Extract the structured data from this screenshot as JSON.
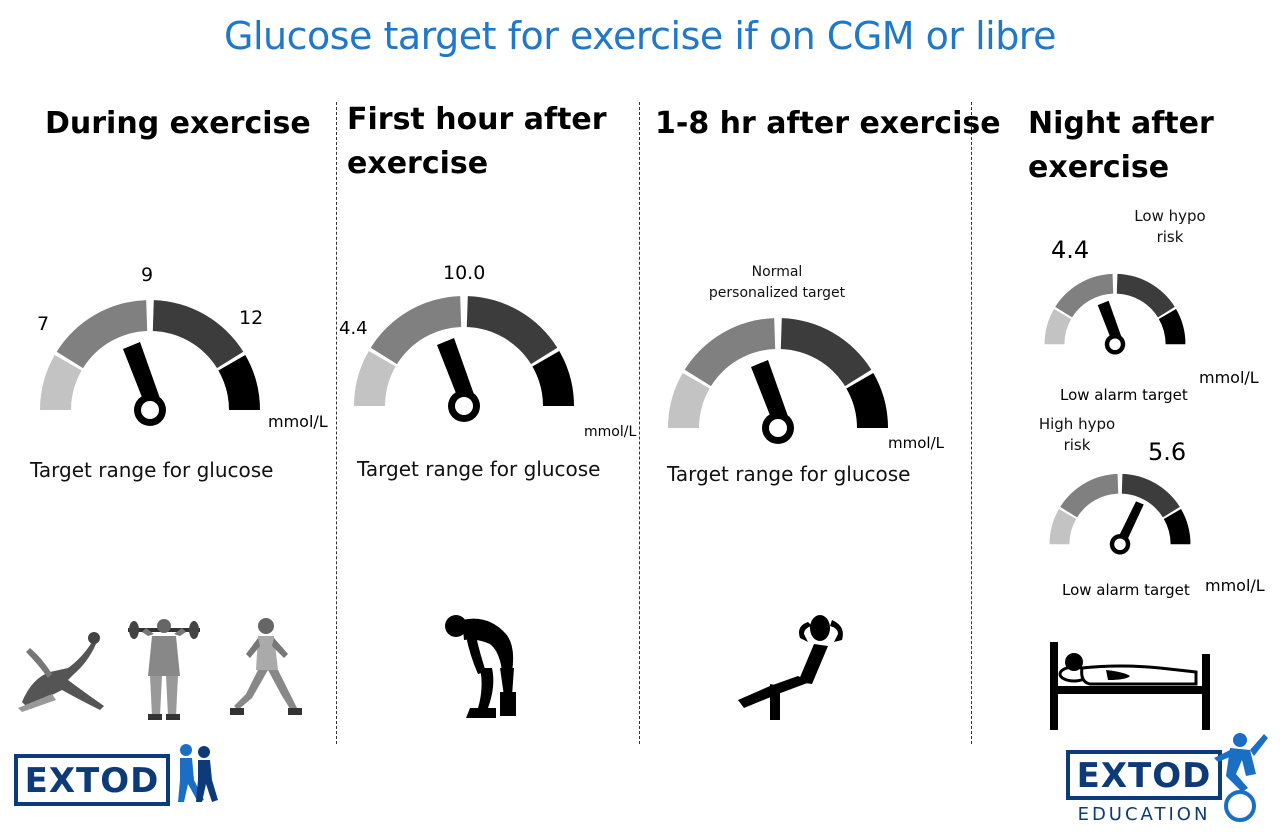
{
  "title": "Glucose target for exercise if on CGM or libre",
  "colors": {
    "title": "#1f78c8",
    "seg_light": "#c3c3c3",
    "seg_mid": "#808080",
    "seg_dark": "#3c3c3c",
    "seg_black": "#000000",
    "logo_blue": "#1a6fc4",
    "logo_navy": "#0d3a78"
  },
  "columns": [
    {
      "heading": "During exercise",
      "gauge": {
        "labels": [
          "7",
          "9",
          "12"
        ],
        "unit": "mmol/L",
        "caption": "Target range for glucose"
      },
      "illustration": [
        "stretching-figure-icon",
        "weightlifter-figure-icon",
        "runner-figure-icon"
      ]
    },
    {
      "heading_lines": [
        "First hour after",
        "exercise"
      ],
      "gauge": {
        "labels": [
          "4.4",
          "10.0"
        ],
        "unit": "mmol/L",
        "caption": "Target range for glucose"
      },
      "illustration": [
        "tired-person-icon"
      ]
    },
    {
      "heading": "1-8 hr after exercise",
      "gauge": {
        "top_label_lines": [
          "Normal",
          "personalized target"
        ],
        "unit": "mmol/L",
        "caption": "Target range for glucose"
      },
      "illustration": [
        "relaxing-person-icon"
      ]
    },
    {
      "heading_lines": [
        "Night after",
        "exercise"
      ],
      "gauges": [
        {
          "value": "4.4",
          "risk_lines": [
            "Low hypo",
            "risk"
          ],
          "alarm": "Low alarm target",
          "unit": "mmol/L"
        },
        {
          "value": "5.6",
          "risk_lines": [
            "High hypo",
            "risk"
          ],
          "alarm": "Low alarm target",
          "unit": "mmol/L"
        }
      ],
      "illustration": [
        "person-in-bed-icon"
      ]
    }
  ],
  "logos": {
    "left": "EXTOD",
    "right": "EXTOD",
    "right_sub": "EDUCATION"
  }
}
